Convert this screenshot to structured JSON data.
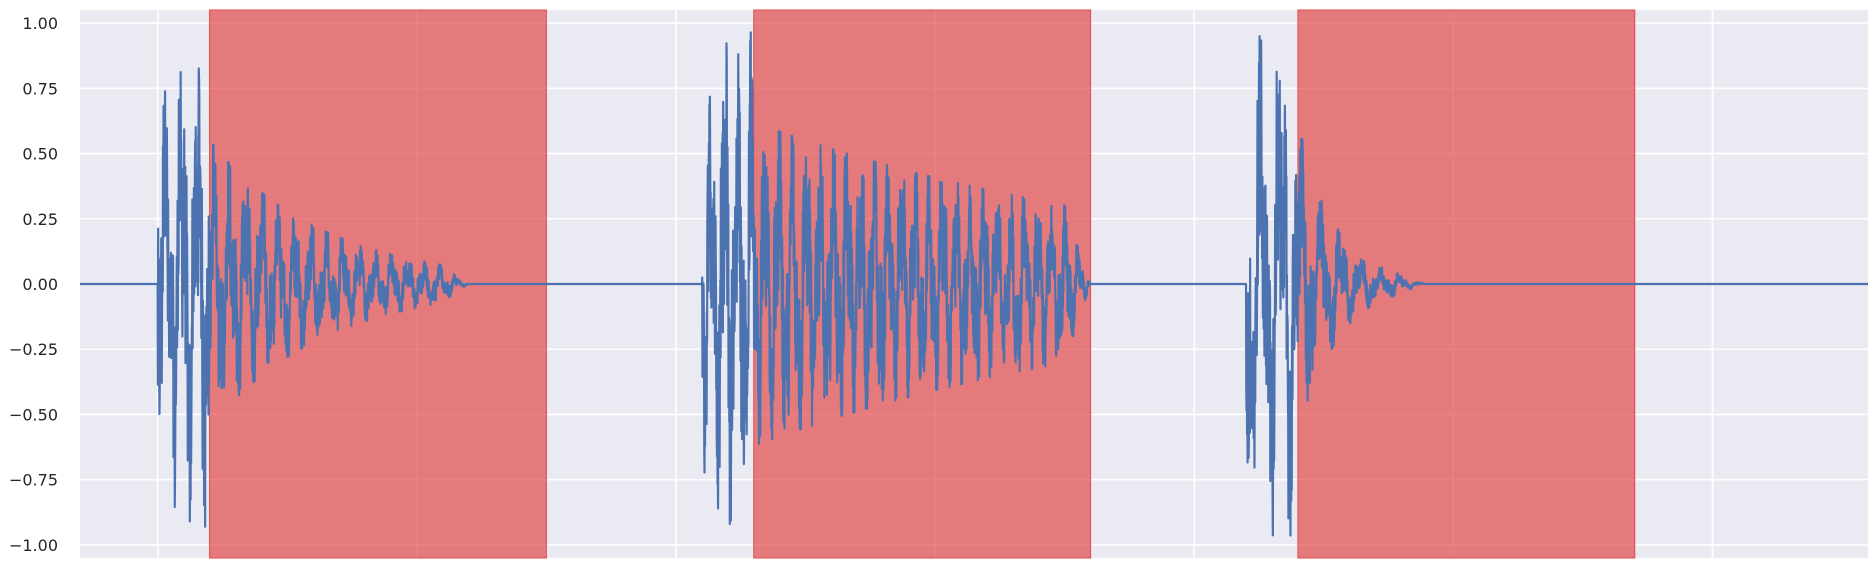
{
  "chart_data": {
    "type": "line",
    "title": "",
    "xlabel": "",
    "ylabel": "",
    "ylim": [
      -1.05,
      1.05
    ],
    "xlim": [
      0,
      3.45
    ],
    "y_ticks": [
      1.0,
      0.75,
      0.5,
      0.25,
      0.0,
      -0.25,
      -0.5,
      -0.75,
      -1.0
    ],
    "y_tick_labels": [
      "1.00",
      "0.75",
      "0.50",
      "0.25",
      "0.00",
      "−0.25",
      "−0.50",
      "−0.75",
      "−1.00"
    ],
    "x_gridlines": [
      0.15,
      0.65,
      1.15,
      1.65,
      2.15,
      2.65,
      3.15
    ],
    "grid": true,
    "colors": {
      "background": "#eaeaf2",
      "grid": "#ffffff",
      "line": "#4c72b0",
      "span": "#e24a4a"
    },
    "highlight_spans": [
      {
        "start": 0.25,
        "end": 0.9
      },
      {
        "start": 1.3,
        "end": 1.95
      },
      {
        "start": 2.35,
        "end": 3.0
      }
    ],
    "series": [
      {
        "bursts": [
          {
            "onset": 0.15,
            "attack_end": 0.25,
            "decay_end": 0.7,
            "peak": 1.0,
            "body_amp": 0.55,
            "decay_rate": 4.5,
            "freq": 32
          },
          {
            "onset": 1.2,
            "attack_end": 1.3,
            "decay_end": 1.9,
            "peak": 1.0,
            "body_amp": 0.62,
            "decay_rate": 1.2,
            "freq": 38
          },
          {
            "onset": 2.25,
            "attack_end": 2.35,
            "decay_end": 2.55,
            "peak": 1.0,
            "body_amp": 0.62,
            "decay_rate": 14.0,
            "freq": 26
          }
        ]
      }
    ]
  }
}
